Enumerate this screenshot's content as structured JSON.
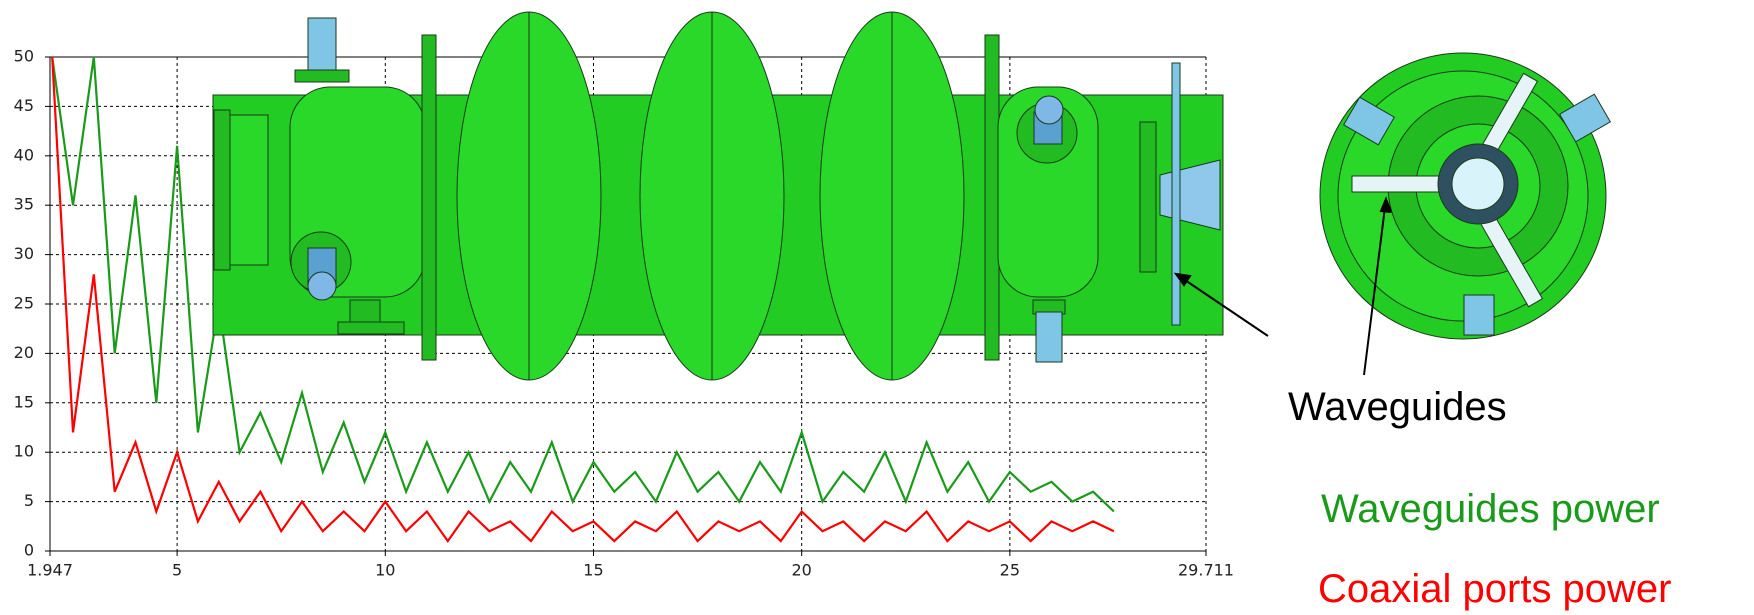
{
  "chart_data": {
    "type": "line",
    "xlim": [
      1.947,
      29.711
    ],
    "xticks": [
      1.947,
      5,
      10,
      15,
      20,
      25,
      29.711
    ],
    "ylim": [
      0,
      50
    ],
    "yticks": [
      0,
      5,
      10,
      15,
      20,
      25,
      30,
      35,
      40,
      45,
      50
    ],
    "grid": true,
    "x": [
      2,
      2.5,
      3,
      3.5,
      4,
      4.5,
      5,
      5.5,
      6,
      6.5,
      7,
      7.5,
      8,
      8.5,
      9,
      9.5,
      10,
      10.5,
      11,
      11.5,
      12,
      12.5,
      13,
      13.5,
      14,
      14.5,
      15,
      15.5,
      16,
      16.5,
      17,
      17.5,
      18,
      18.5,
      19,
      19.5,
      20,
      20.5,
      21,
      21.5,
      22,
      22.5,
      23,
      23.5,
      24,
      24.5,
      25,
      25.5,
      26,
      26.5,
      27,
      27.5
    ],
    "series": [
      {
        "name": "Waveguides power",
        "color": "#1a9a1a",
        "values": [
          50,
          35,
          50,
          20,
          36,
          15,
          41,
          12,
          25,
          10,
          14,
          9,
          16,
          8,
          13,
          7,
          12,
          6,
          11,
          6,
          10,
          5,
          9,
          6,
          11,
          5,
          9,
          6,
          8,
          5,
          10,
          6,
          8,
          5,
          9,
          6,
          12,
          5,
          8,
          6,
          10,
          5,
          11,
          6,
          9,
          5,
          8,
          6,
          7,
          5,
          6,
          4
        ]
      },
      {
        "name": "Coaxial ports power",
        "color": "#ff0000",
        "values": [
          50,
          12,
          28,
          6,
          11,
          4,
          10,
          3,
          7,
          3,
          6,
          2,
          5,
          2,
          4,
          2,
          5,
          2,
          4,
          1,
          4,
          2,
          3,
          1,
          4,
          2,
          3,
          1,
          3,
          2,
          4,
          1,
          3,
          2,
          3,
          1,
          4,
          2,
          3,
          1,
          3,
          2,
          4,
          1,
          3,
          2,
          3,
          1,
          3,
          2,
          3,
          2
        ]
      }
    ],
    "annotations": [
      "Waveguides"
    ]
  }
}
